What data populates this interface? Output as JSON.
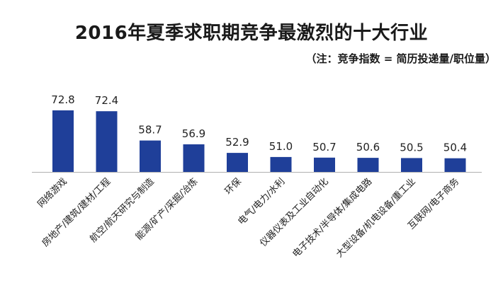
{
  "chart_data": {
    "type": "bar",
    "title": "2016年夏季求职期竞争最激烈的十大行业",
    "subtitle": "（注：竞争指数 = 简历投递量/职位量）",
    "categories": [
      "网络游戏",
      "房地产/建筑/建材/工程",
      "航空/航天研究与制造",
      "能源/矿产/采掘/冶炼",
      "环保",
      "电气/电力/水利",
      "仪器仪表及工业自动化",
      "电子技术/半导体/集成电路",
      "大型设备/机电设备/重工业",
      "互联网/电子商务"
    ],
    "values": [
      72.8,
      72.4,
      58.7,
      56.9,
      52.9,
      51.0,
      50.7,
      50.6,
      50.5,
      50.4
    ],
    "value_labels": [
      "72.8",
      "72.4",
      "58.7",
      "56.9",
      "52.9",
      "51.0",
      "50.7",
      "50.6",
      "50.5",
      "50.4"
    ],
    "ylim": [
      44,
      74
    ],
    "grid": false,
    "legend": "none",
    "bar_color": "#1f3f99",
    "axis_color": "#b0b0b0"
  }
}
